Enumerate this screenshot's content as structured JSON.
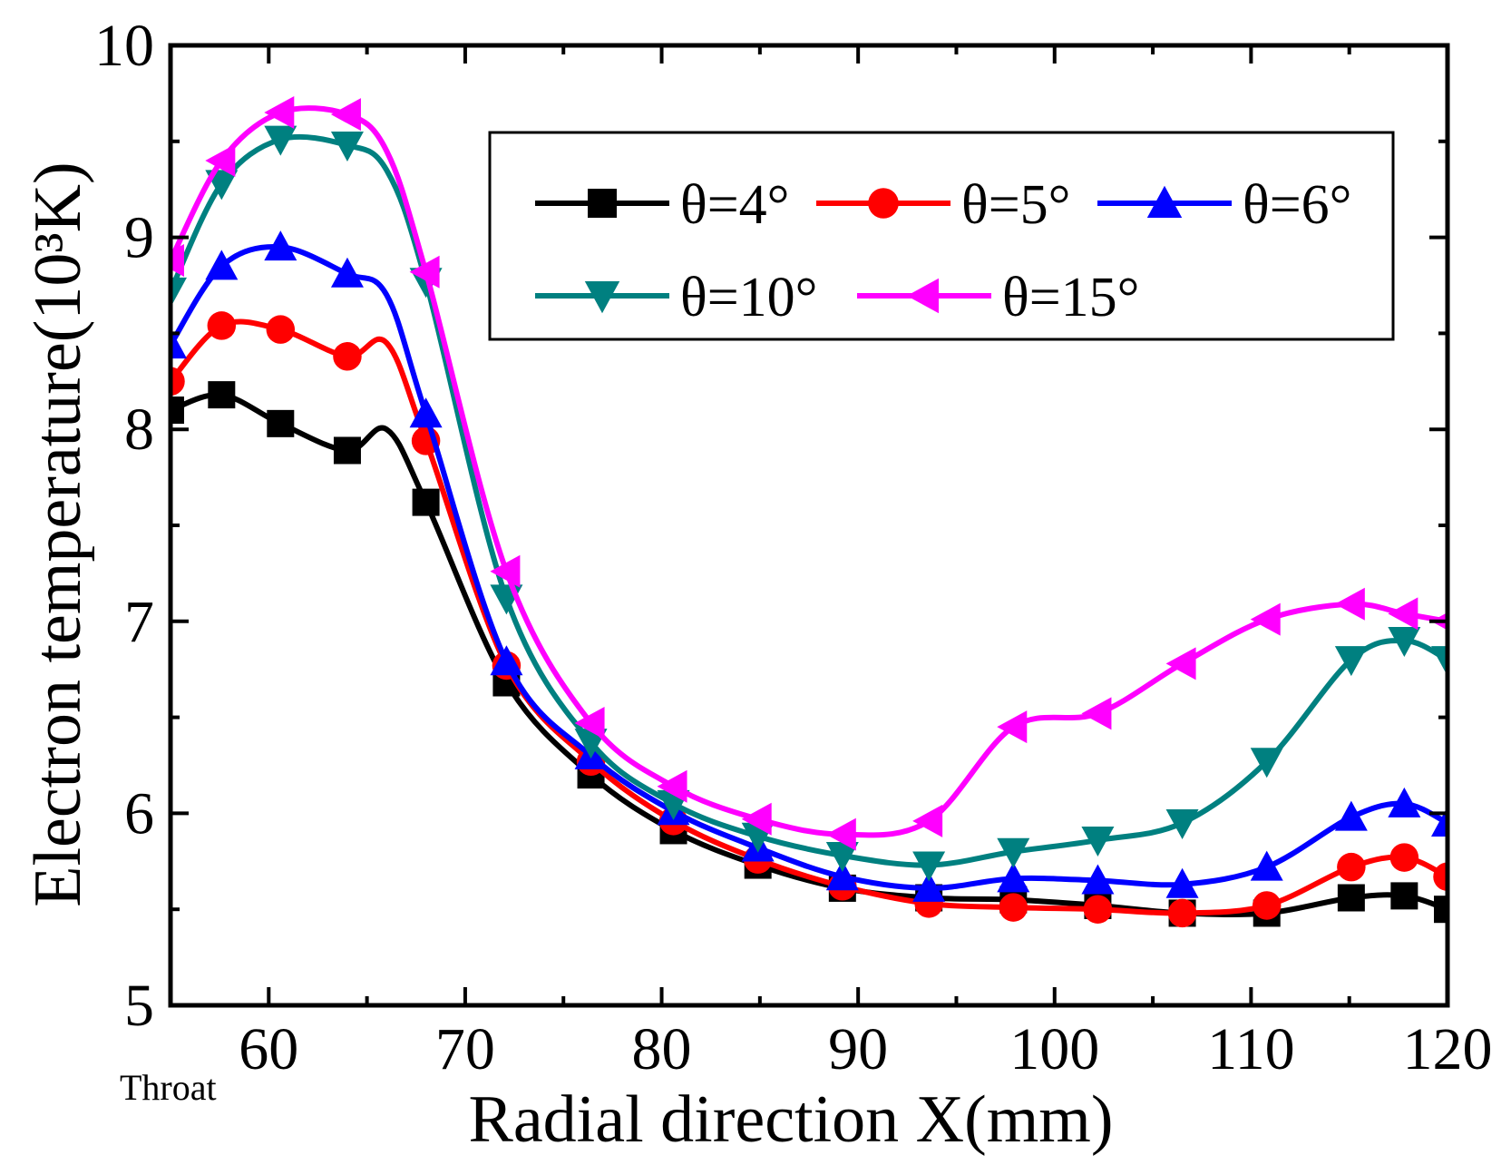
{
  "chart_data": {
    "type": "line",
    "title": "",
    "xlabel": "Radial direction X(mm)",
    "ylabel": "Electron temperature(10³K)",
    "xlim": [
      55,
      120
    ],
    "ylim": [
      5,
      10
    ],
    "x_ticks": [
      60,
      70,
      80,
      90,
      100,
      110,
      120
    ],
    "y_ticks": [
      5,
      6,
      7,
      8,
      9,
      10
    ],
    "grid": false,
    "legend_position": "top-right",
    "annotation": "Throat",
    "series": [
      {
        "name": "θ=4°",
        "color": "#000000",
        "marker": "square",
        "x": [
          55,
          57.6,
          60.6,
          64,
          66,
          68,
          72.1,
          76.4,
          80.6,
          84.9,
          89.2,
          93.6,
          97.9,
          102.2,
          106.5,
          110.8,
          115.1,
          117.8,
          120
        ],
        "y": [
          8.1,
          8.18,
          8.03,
          7.89,
          8.0,
          7.62,
          6.68,
          6.2,
          5.91,
          5.73,
          5.61,
          5.56,
          5.55,
          5.52,
          5.48,
          5.48,
          5.56,
          5.57,
          5.5
        ]
      },
      {
        "name": "θ=5°",
        "color": "#ff0000",
        "marker": "circle",
        "x": [
          55,
          57.6,
          60.6,
          64,
          66,
          68,
          72.1,
          76.4,
          80.6,
          84.9,
          89.2,
          93.6,
          97.9,
          102.2,
          106.5,
          110.8,
          115.1,
          117.8,
          120
        ],
        "y": [
          8.25,
          8.54,
          8.52,
          8.38,
          8.45,
          7.94,
          6.77,
          6.27,
          5.96,
          5.76,
          5.62,
          5.53,
          5.51,
          5.5,
          5.48,
          5.52,
          5.72,
          5.77,
          5.67
        ]
      },
      {
        "name": "θ=6°",
        "color": "#0000ff",
        "marker": "triangle-up",
        "x": [
          55,
          57.6,
          60.6,
          64,
          66,
          68,
          72.1,
          76.4,
          80.6,
          84.9,
          89.2,
          93.6,
          97.9,
          102.2,
          106.5,
          110.8,
          115.1,
          117.8,
          120
        ],
        "y": [
          8.44,
          8.85,
          8.95,
          8.81,
          8.7,
          8.08,
          6.79,
          6.3,
          6.01,
          5.82,
          5.67,
          5.61,
          5.66,
          5.65,
          5.63,
          5.72,
          5.98,
          6.05,
          5.95
        ]
      },
      {
        "name": "θ=10°",
        "color": "#008080",
        "marker": "triangle-down",
        "x": [
          55,
          57.6,
          60.6,
          64,
          66,
          68,
          72.1,
          76.4,
          80.6,
          84.9,
          89.2,
          93.6,
          97.9,
          102.2,
          106.5,
          110.8,
          115.1,
          117.8,
          120
        ],
        "y": [
          8.72,
          9.28,
          9.51,
          9.48,
          9.35,
          8.77,
          7.12,
          6.37,
          6.05,
          5.88,
          5.78,
          5.73,
          5.8,
          5.86,
          5.95,
          6.27,
          6.8,
          6.9,
          6.8
        ]
      },
      {
        "name": "θ=15°",
        "color": "#ff00ff",
        "marker": "triangle-left",
        "x": [
          55,
          57.6,
          60.6,
          64,
          66,
          68,
          72.1,
          76.4,
          80.6,
          84.9,
          89.2,
          93.6,
          97.9,
          102.2,
          106.5,
          110.8,
          115.1,
          117.8,
          120
        ],
        "y": [
          8.88,
          9.4,
          9.65,
          9.64,
          9.45,
          8.82,
          7.26,
          6.47,
          6.14,
          5.97,
          5.89,
          5.96,
          6.45,
          6.52,
          6.78,
          7.01,
          7.09,
          7.04,
          7.0
        ]
      }
    ]
  }
}
